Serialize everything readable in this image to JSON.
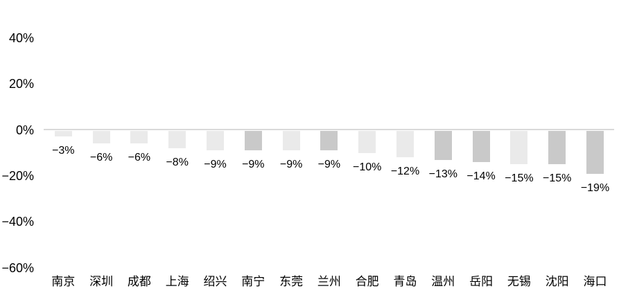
{
  "chart_data": {
    "type": "bar",
    "title": "",
    "categories": [
      "南京",
      "深圳",
      "成都",
      "上海",
      "绍兴",
      "南宁",
      "东莞",
      "兰州",
      "合肥",
      "青岛",
      "温州",
      "岳阳",
      "无锡",
      "沈阳",
      "海口"
    ],
    "values": [
      -3,
      -6,
      -6,
      -8,
      -9,
      -9,
      -9,
      -9,
      -10,
      -12,
      -13,
      -14,
      -15,
      -15,
      -19
    ],
    "data_labels": [
      "−3%",
      "−6%",
      "−6%",
      "−8%",
      "−9%",
      "−9%",
      "−9%",
      "−9%",
      "−10%",
      "−12%",
      "−13%",
      "−14%",
      "−15%",
      "−15%",
      "−19%"
    ],
    "bar_shades": [
      "light",
      "light",
      "light",
      "light",
      "light",
      "dark",
      "light",
      "dark",
      "light",
      "light",
      "dark",
      "dark",
      "light",
      "dark",
      "dark"
    ],
    "y_axis": {
      "ticks": [
        {
          "label": "40%",
          "value": 40
        },
        {
          "label": "20%",
          "value": 20
        },
        {
          "label": "0%",
          "value": 0
        },
        {
          "label": "−20%",
          "value": -20
        },
        {
          "label": "−40%",
          "value": -40
        },
        {
          "label": "−60%",
          "value": -60
        }
      ],
      "range": [
        -60,
        40
      ]
    },
    "xlabel": "",
    "ylabel": "",
    "grid": "off",
    "legend": "none",
    "colors": {
      "bar_light": "#eaeaea",
      "bar_dark": "#c9c9c9",
      "axis_line": "#d9d9d9",
      "text": "#000000",
      "background": "#ffffff"
    }
  }
}
